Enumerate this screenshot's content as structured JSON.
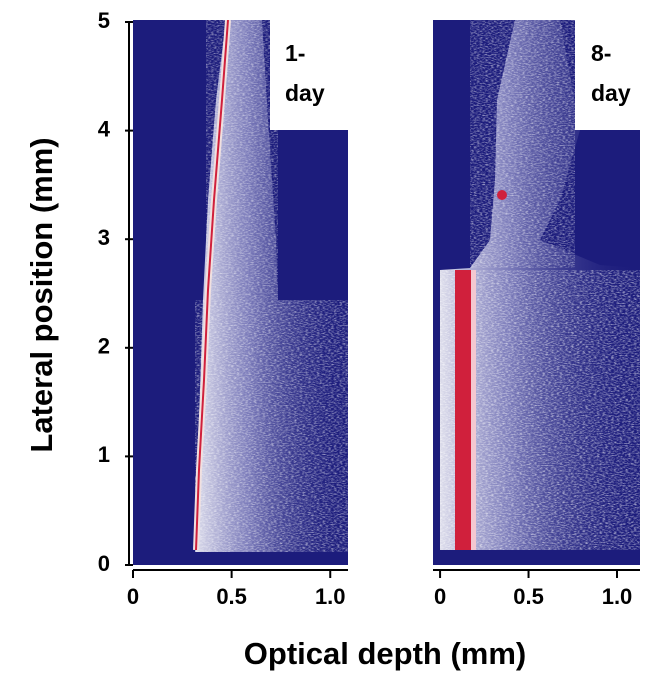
{
  "chart_data": {
    "type": "image-panels",
    "y_label": "Lateral position (mm)",
    "x_label": "Optical depth (mm)",
    "ylim": [
      0,
      5
    ],
    "yticks": [
      0,
      1,
      2,
      3,
      4,
      5
    ],
    "panels": [
      {
        "label": [
          "1-",
          "day"
        ],
        "xlim": [
          0,
          1.09
        ],
        "xticks": [
          0,
          0.5,
          {
            "value": 1,
            "label": "1.0"
          }
        ]
      },
      {
        "label": [
          "8-",
          "day"
        ],
        "xlim": [
          -0.04,
          1.13
        ],
        "xticks": [
          0,
          0.5,
          {
            "value": 1,
            "label": "1.0"
          }
        ]
      }
    ]
  }
}
